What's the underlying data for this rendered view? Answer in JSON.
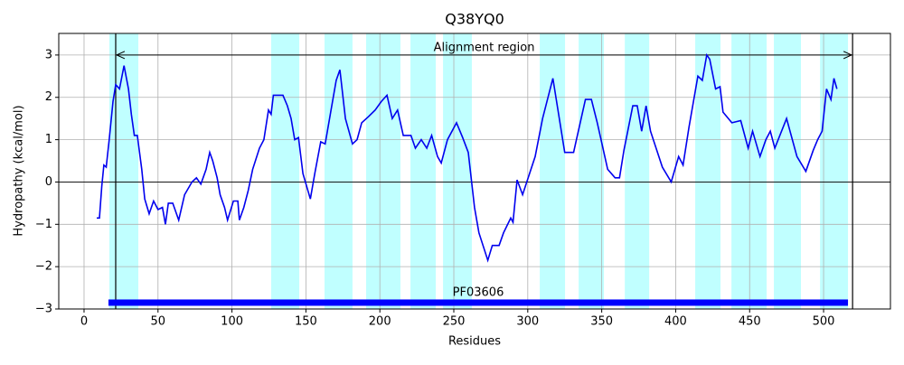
{
  "chart_data": {
    "type": "line",
    "title": "Q38YQ0",
    "xlabel": "Residues",
    "ylabel": "Hydropathy (kcal/mol)",
    "xlim": [
      -17.1,
      545.2
    ],
    "ylim": [
      -3,
      3.51
    ],
    "xticks": [
      0,
      50,
      100,
      150,
      200,
      250,
      300,
      350,
      400,
      450,
      500
    ],
    "yticks": [
      {
        "value": -3,
        "label": "−3"
      },
      {
        "value": -2,
        "label": "−2"
      },
      {
        "value": -1,
        "label": "−1"
      },
      0,
      1,
      2,
      3
    ],
    "grid": true,
    "zero_line": true,
    "color": "#0000ee",
    "x": [
      8.6,
      10.4,
      12,
      13.4,
      15,
      17,
      19.6,
      21.4,
      24,
      27,
      30,
      32,
      34,
      36,
      39,
      41,
      44,
      47,
      50,
      53,
      55,
      57,
      60,
      64,
      68,
      73,
      76,
      79,
      82.5,
      85,
      87,
      90,
      92,
      95,
      97,
      101,
      104,
      105,
      108,
      111,
      114,
      118.6,
      121.6,
      124.7,
      126.5,
      128,
      134.5,
      137.5,
      140,
      142.4,
      145,
      148,
      153,
      156,
      160,
      163,
      167,
      170.5,
      173,
      176.7,
      181.5,
      184.6,
      187.7,
      192.5,
      196.8,
      201,
      204.8,
      208.4,
      212,
      215.8,
      221,
      224,
      228,
      231.7,
      235,
      239,
      241.5,
      245.7,
      251.8,
      256,
      259.8,
      264,
      267,
      273,
      276,
      280.6,
      283.6,
      288.5,
      290,
      292.8,
      296.5,
      305,
      310,
      317,
      325,
      331,
      339,
      343,
      347,
      354,
      359,
      362,
      365,
      371,
      374,
      377,
      380,
      383,
      391,
      397,
      402,
      405,
      409,
      415,
      418,
      421,
      423,
      427,
      430,
      432,
      438,
      444,
      449,
      452,
      457,
      461,
      464,
      467,
      475,
      482,
      488,
      493,
      496,
      499,
      502,
      505,
      507,
      509
    ],
    "values": [
      -0.85,
      -0.85,
      -0.1,
      0.4,
      0.35,
      1.0,
      1.9,
      2.3,
      2.2,
      2.75,
      2.2,
      1.6,
      1.1,
      1.1,
      0.3,
      -0.4,
      -0.75,
      -0.45,
      -0.65,
      -0.6,
      -1.0,
      -0.5,
      -0.5,
      -0.9,
      -0.3,
      0.0,
      0.1,
      -0.05,
      0.3,
      0.7,
      0.5,
      0.1,
      -0.3,
      -0.6,
      -0.9,
      -0.45,
      -0.45,
      -0.9,
      -0.6,
      -0.2,
      0.3,
      0.8,
      1.0,
      1.7,
      1.6,
      2.05,
      2.05,
      1.8,
      1.5,
      1.0,
      1.05,
      0.2,
      -0.4,
      0.2,
      0.95,
      0.9,
      1.7,
      2.4,
      2.65,
      1.5,
      0.9,
      1.0,
      1.4,
      1.55,
      1.7,
      1.9,
      2.05,
      1.5,
      1.7,
      1.1,
      1.1,
      0.8,
      1.0,
      0.8,
      1.1,
      0.6,
      0.45,
      1.0,
      1.4,
      1.05,
      0.7,
      -0.6,
      -1.2,
      -1.85,
      -1.5,
      -1.5,
      -1.2,
      -0.85,
      -0.95,
      0.05,
      -0.3,
      0.6,
      1.5,
      2.45,
      0.7,
      0.7,
      1.95,
      1.95,
      1.4,
      0.3,
      0.1,
      0.1,
      0.75,
      1.8,
      1.8,
      1.2,
      1.8,
      1.2,
      0.35,
      0.0,
      0.6,
      0.4,
      1.3,
      2.5,
      2.4,
      3.0,
      2.9,
      2.2,
      2.25,
      1.65,
      1.4,
      1.45,
      0.8,
      1.2,
      0.6,
      1.0,
      1.2,
      0.8,
      1.5,
      0.6,
      0.25,
      0.75,
      1.0,
      1.2,
      2.2,
      1.95,
      2.45,
      2.2
    ],
    "regions": {
      "color": "#c0ffff",
      "spans": [
        [
          17.1,
          36.7
        ],
        [
          126.5,
          145.5
        ],
        [
          162.6,
          181.5
        ],
        [
          190.7,
          213.9
        ],
        [
          220.7,
          237.8
        ],
        [
          242.7,
          262.2
        ],
        [
          308.1,
          325.2
        ],
        [
          334.4,
          351.5
        ],
        [
          365.6,
          382.1
        ],
        [
          413.2,
          430.3
        ],
        [
          437.7,
          461.5
        ],
        [
          466.4,
          484.7
        ],
        [
          497.6,
          516.5
        ]
      ]
    },
    "alignment_region": {
      "label": "Alignment region",
      "start": 21.4,
      "end": 519.6,
      "y": 3
    },
    "domain": {
      "name": "PF03606",
      "start": 16.5,
      "end": 516.5,
      "y": -2.85,
      "color": "#0000ff"
    }
  }
}
